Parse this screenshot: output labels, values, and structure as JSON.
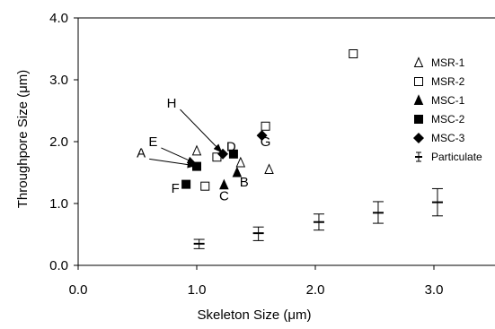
{
  "chart_data": {
    "type": "scatter",
    "title": "",
    "xlabel": "Skeleton Size (μm)",
    "ylabel": "Throughpore Size (μm)",
    "xlim": [
      0,
      3.5
    ],
    "ylim": [
      0,
      4
    ],
    "xticks": [
      "0.0",
      "1.0",
      "2.0",
      "3.0"
    ],
    "yticks": [
      "0.0",
      "1.0",
      "2.0",
      "3.0",
      "4.0"
    ],
    "grid": false,
    "legend_position": "right",
    "series": [
      {
        "name": "MSR-1",
        "marker": "open-triangle",
        "points": [
          {
            "x": 1.0,
            "y": 1.85
          },
          {
            "x": 1.37,
            "y": 1.66
          },
          {
            "x": 1.61,
            "y": 1.55
          }
        ]
      },
      {
        "name": "MSR-2",
        "marker": "open-square",
        "points": [
          {
            "x": 1.07,
            "y": 1.28
          },
          {
            "x": 1.17,
            "y": 1.75
          },
          {
            "x": 1.58,
            "y": 2.25
          },
          {
            "x": 2.32,
            "y": 3.42
          }
        ]
      },
      {
        "name": "MSC-1",
        "marker": "filled-triangle",
        "points": [
          {
            "x": 1.23,
            "y": 1.3
          },
          {
            "x": 1.34,
            "y": 1.5
          }
        ]
      },
      {
        "name": "MSC-2",
        "marker": "filled-square",
        "points": [
          {
            "x": 0.91,
            "y": 1.31
          },
          {
            "x": 1.0,
            "y": 1.6
          },
          {
            "x": 1.31,
            "y": 1.8
          }
        ]
      },
      {
        "name": "MSC-3",
        "marker": "filled-diamond",
        "points": [
          {
            "x": 1.22,
            "y": 1.8
          },
          {
            "x": 1.55,
            "y": 2.1
          }
        ]
      },
      {
        "name": "Particulate",
        "marker": "errorbar",
        "points": [
          {
            "x": 1.02,
            "y": 0.35,
            "low": 0.27,
            "high": 0.42
          },
          {
            "x": 1.52,
            "y": 0.52,
            "low": 0.4,
            "high": 0.62
          },
          {
            "x": 2.03,
            "y": 0.7,
            "low": 0.57,
            "high": 0.83
          },
          {
            "x": 2.53,
            "y": 0.85,
            "low": 0.68,
            "high": 1.03
          },
          {
            "x": 3.03,
            "y": 1.02,
            "low": 0.8,
            "high": 1.24
          }
        ]
      }
    ],
    "annotations": [
      {
        "label": "A",
        "arrow": true,
        "tail": {
          "x": 0.6,
          "y": 1.72
        },
        "head": {
          "x": 0.99,
          "y": 1.61
        }
      },
      {
        "label": "E",
        "arrow": true,
        "tail": {
          "x": 0.7,
          "y": 1.9
        },
        "head": {
          "x": 0.99,
          "y": 1.65
        }
      },
      {
        "label": "H",
        "arrow": true,
        "tail": {
          "x": 0.86,
          "y": 2.52
        },
        "head": {
          "x": 1.21,
          "y": 1.83
        }
      },
      {
        "label": "D",
        "arrow": false,
        "at": {
          "x": 1.29,
          "y": 1.92
        }
      },
      {
        "label": "G",
        "arrow": false,
        "at": {
          "x": 1.58,
          "y": 2.0
        }
      },
      {
        "label": "F",
        "arrow": false,
        "at": {
          "x": 0.82,
          "y": 1.25
        }
      },
      {
        "label": "C",
        "arrow": false,
        "at": {
          "x": 1.23,
          "y": 1.12
        }
      },
      {
        "label": "B",
        "arrow": false,
        "at": {
          "x": 1.4,
          "y": 1.35
        }
      }
    ]
  }
}
